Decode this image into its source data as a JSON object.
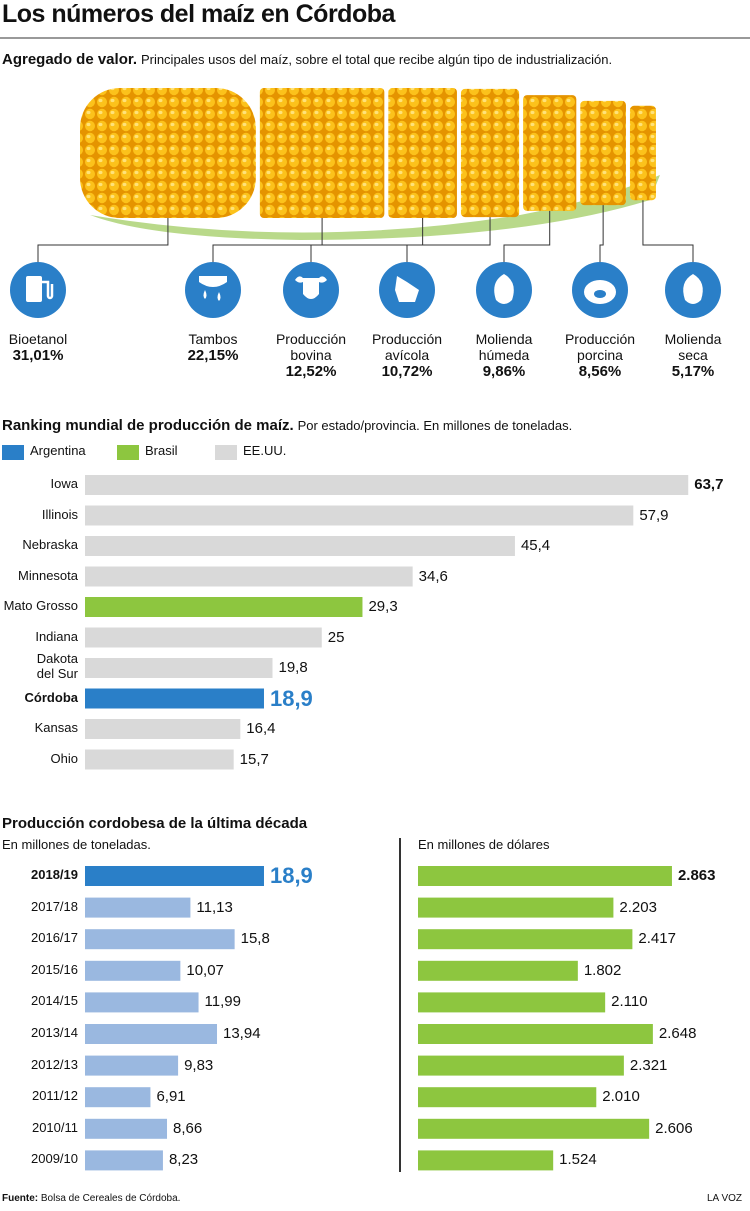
{
  "title": "Los números del maíz en Córdoba",
  "chart_data": [
    {
      "type": "corn",
      "title": "Agregado de valor.",
      "subtitle": "Principales usos del maíz, sobre el total que recibe algún tipo de industrialización.",
      "categories": [
        "Bioetanol",
        "Tambos",
        "Producción bovina",
        "Producción avícola",
        "Molienda húmeda",
        "Producción porcina",
        "Molienda seca"
      ],
      "values": [
        31.01,
        22.15,
        12.52,
        10.72,
        9.86,
        8.56,
        5.17
      ],
      "value_labels": [
        "31,01%",
        "22,15%",
        "12,52%",
        "10,72%",
        "9,86%",
        "8,56%",
        "5,17%"
      ],
      "color": "#2a7fc8"
    },
    {
      "type": "bar",
      "title": "Ranking mundial de producción de maíz.",
      "subtitle": "Por estado/provincia. En millones de toneladas.",
      "categories": [
        "Iowa",
        "Illinois",
        "Nebraska",
        "Minnesota",
        "Mato Grosso",
        "Indiana",
        "Dakota del Sur",
        "Córdoba",
        "Kansas",
        "Ohio"
      ],
      "series": [
        {
          "name": "Argentina",
          "color": "#2a7fc8",
          "values": [
            null,
            null,
            null,
            null,
            null,
            null,
            null,
            18.9,
            null,
            null
          ],
          "value_labels": [
            null,
            null,
            null,
            null,
            null,
            null,
            null,
            "18,9",
            null,
            null
          ]
        },
        {
          "name": "Brasil",
          "color": "#8dc63f",
          "values": [
            null,
            null,
            null,
            null,
            29.3,
            null,
            null,
            null,
            null,
            null
          ],
          "value_labels": [
            null,
            null,
            null,
            null,
            "29,3",
            null,
            null,
            null,
            null,
            null
          ]
        },
        {
          "name": "EE.UU.",
          "color": "#d9d9d9",
          "values": [
            63.7,
            57.9,
            45.4,
            34.6,
            null,
            25,
            19.8,
            null,
            16.4,
            15.7
          ],
          "value_labels": [
            "63,7",
            "57,9",
            "45,4",
            "34,6",
            null,
            "25",
            "19,8",
            null,
            "16,4",
            "15,7"
          ]
        }
      ]
    },
    {
      "type": "bar",
      "title": "Producción cordobesa de la última década",
      "subtitle": "En millones de toneladas.",
      "categories": [
        "2018/19",
        "2017/18",
        "2016/17",
        "2015/16",
        "2014/15",
        "2013/14",
        "2012/13",
        "2011/12",
        "2010/11",
        "2009/10"
      ],
      "values": [
        18.9,
        11.13,
        15.8,
        10.07,
        11.99,
        13.94,
        9.83,
        6.91,
        8.66,
        8.23
      ],
      "value_labels": [
        "18,9",
        "11,13",
        "15,8",
        "10,07",
        "11,99",
        "13,94",
        "9,83",
        "6,91",
        "8,66",
        "8,23"
      ],
      "color": "#9ab8e0",
      "highlight_color": "#2a7fc8"
    },
    {
      "type": "bar",
      "subtitle": "En millones de dólares",
      "values": [
        2863,
        2203,
        2417,
        1802,
        2110,
        2648,
        2321,
        2010,
        2606,
        1524
      ],
      "value_labels": [
        "2.863",
        "2.203",
        "2.417",
        "1.802",
        "2.110",
        "2.648",
        "2.321",
        "2.010",
        "2.606",
        "1.524"
      ],
      "color": "#8dc63f"
    }
  ],
  "source_label": "Fuente:",
  "source": "Bolsa de Cereales de Córdoba.",
  "brand": "LA VOZ"
}
